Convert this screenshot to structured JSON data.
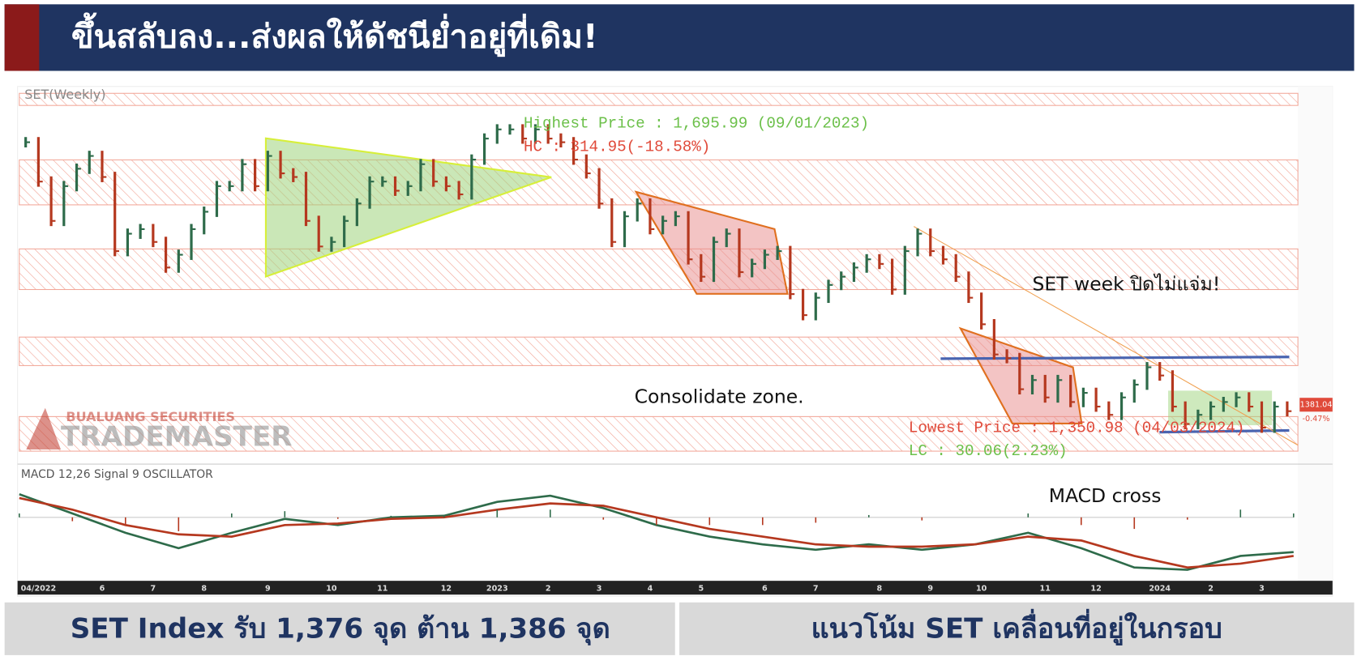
{
  "header": {
    "title": "ขึ้นสลับลง...ส่งผลให้ดัชนีย่ำอยู่ที่เดิม!"
  },
  "footer": {
    "left": "SET Index รับ 1,376 จุด  ต้าน 1,386 จุด",
    "right": "แนวโน้ม SET เคลื่อนที่อยู่ในกรอบ"
  },
  "watermark": {
    "company": "BUALUANG SECURITIES",
    "product": "TRADEMASTER"
  },
  "chart_data": [
    {
      "type": "bar",
      "title": "SET(Weekly)",
      "categories": [
        null,
        "04/2022",
        null,
        null,
        null,
        null,
        "6",
        null,
        null,
        null,
        "7",
        null,
        null,
        null,
        "8",
        null,
        null,
        null,
        null,
        "9",
        null,
        null,
        null,
        null,
        "10",
        null,
        null,
        null,
        "11",
        null,
        null,
        null,
        null,
        "12",
        null,
        null,
        null,
        "2023",
        null,
        null,
        null,
        "2",
        null,
        null,
        null,
        "3",
        null,
        null,
        null,
        "4",
        null,
        null,
        null,
        "5",
        null,
        null,
        null,
        null,
        "6",
        null,
        null,
        null,
        "7",
        null,
        null,
        null,
        null,
        "8",
        null,
        null,
        null,
        "9",
        null,
        null,
        null,
        "10",
        null,
        null,
        null,
        null,
        "11",
        null,
        null,
        null,
        "12",
        null,
        null,
        null,
        null,
        "2024",
        null,
        null,
        null,
        "2",
        null,
        null,
        null,
        "3",
        null,
        null
      ],
      "values": [
        1668,
        1625,
        1582,
        1620,
        1639,
        1653,
        1630,
        1549,
        1568,
        1573,
        1559,
        1531,
        1545,
        1573,
        1592,
        1620,
        1620,
        1644,
        1620,
        1653,
        1634,
        1630,
        1582,
        1554,
        1559,
        1582,
        1601,
        1625,
        1625,
        1615,
        1620,
        1644,
        1625,
        1620,
        1611,
        1649,
        1672,
        1682,
        1682,
        1672,
        1682,
        1672,
        1668,
        1649,
        1634,
        1601,
        1559,
        1587,
        1601,
        1573,
        1582,
        1587,
        1540,
        1521,
        1559,
        1568,
        1526,
        1535,
        1545,
        1549,
        1502,
        1479,
        1498,
        1512,
        1521,
        1531,
        1540,
        1535,
        1507,
        1549,
        1568,
        1549,
        1540,
        1521,
        1498,
        1469,
        1436,
        1432,
        1398,
        1408,
        1389,
        1408,
        1384,
        1394,
        1379,
        1370,
        1389,
        1403,
        1422,
        1413,
        1379,
        1360,
        1370,
        1379,
        1384,
        1389,
        1379,
        1356,
        1379,
        1374
      ],
      "up_color": "#2e6b4a",
      "down_color": "#b5381f",
      "ylim": [
        1318,
        1729
      ],
      "last_price": {
        "value": 1381.04,
        "change_label": "-0.47%"
      },
      "annotations": [
        "Highest Price : 1,695.99 (09/01/2023)",
        "HC : 314.95(-18.58%)",
        "Lowest Price : 1,350.98 (04/03/2024)",
        "LC : 30.06(2.23%)",
        "SET week ปิดไม่แจ่ม!",
        "Consolidate zone.",
        "MACD cross"
      ]
    },
    {
      "type": "line",
      "title": "MACD 12,26 Signal 9 OSCILLATOR",
      "categories": [
        null,
        null,
        null,
        null,
        null,
        null,
        null,
        null,
        null,
        null,
        null,
        null,
        null,
        null,
        null,
        null,
        null,
        null,
        null,
        null,
        null,
        null,
        null,
        null,
        null
      ],
      "series": [
        {
          "name": "MACD",
          "color": "#2e6b4a",
          "values": [
            15,
            2.5,
            -10,
            -20,
            -10,
            -1,
            -5,
            0,
            1,
            10,
            14,
            6,
            -5,
            -12.5,
            -17.5,
            -21,
            -17.5,
            -21,
            -17.5,
            -10,
            -20,
            -32.5,
            -34,
            -25,
            -22.5
          ]
        },
        {
          "name": "Signal",
          "color": "#b5381f",
          "values": [
            12.5,
            5,
            -5,
            -11,
            -12.5,
            -5,
            -4,
            -1,
            0,
            5,
            9,
            7.5,
            0,
            -7.5,
            -12.5,
            -17.5,
            -19,
            -19,
            -17.5,
            -12.5,
            -15,
            -25,
            -32.5,
            -30,
            -25
          ]
        },
        {
          "name": "OSCILLATOR",
          "color": "#999999",
          "type": "bar",
          "values": [
            2.5,
            -2.5,
            -5,
            -9,
            2.5,
            4,
            -1,
            1,
            1,
            5,
            5,
            -1.5,
            -5,
            -5,
            -5,
            -3.5,
            1.5,
            -2,
            0,
            2.5,
            -5,
            -7.5,
            -1.5,
            5,
            2.5
          ]
        }
      ],
      "ylim": [
        -40,
        30
      ]
    }
  ]
}
